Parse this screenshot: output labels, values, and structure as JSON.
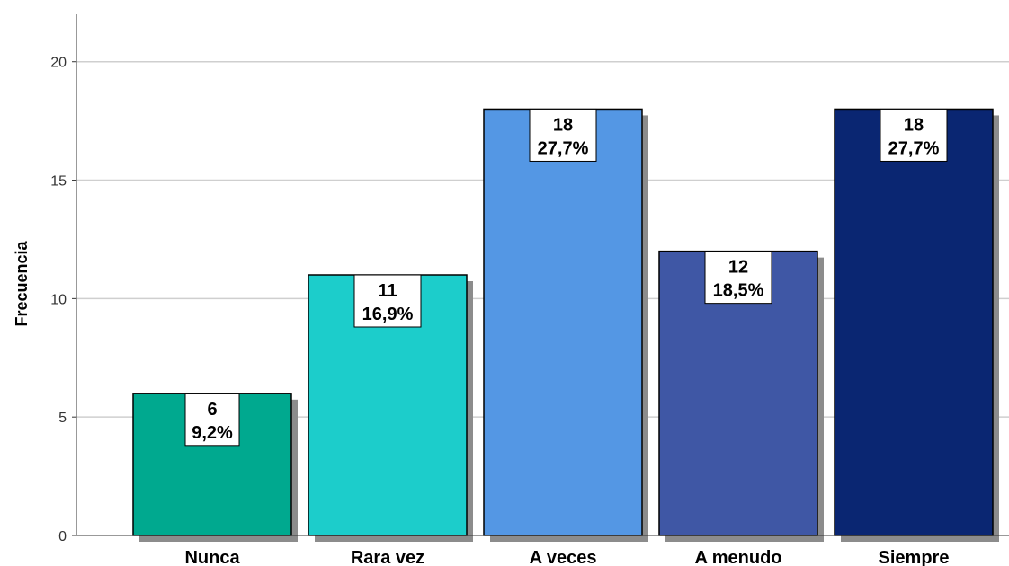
{
  "chart_data": {
    "type": "bar",
    "categories": [
      "Nunca",
      "Rara vez",
      "A veces",
      "A menudo",
      "Siempre"
    ],
    "values": [
      6,
      11,
      18,
      12,
      18
    ],
    "percent_labels": [
      "9,2%",
      "16,9%",
      "27,7%",
      "18,5%",
      "27,7%"
    ],
    "colors": [
      "#00A98F",
      "#1CCDCB",
      "#5497E4",
      "#3F57A5",
      "#0A2672"
    ],
    "title": "",
    "xlabel": "",
    "ylabel": "Frecuencia",
    "ylim": [
      0,
      22
    ],
    "yticks": [
      0,
      5,
      10,
      15,
      20
    ],
    "grid": true,
    "legend": "none"
  }
}
